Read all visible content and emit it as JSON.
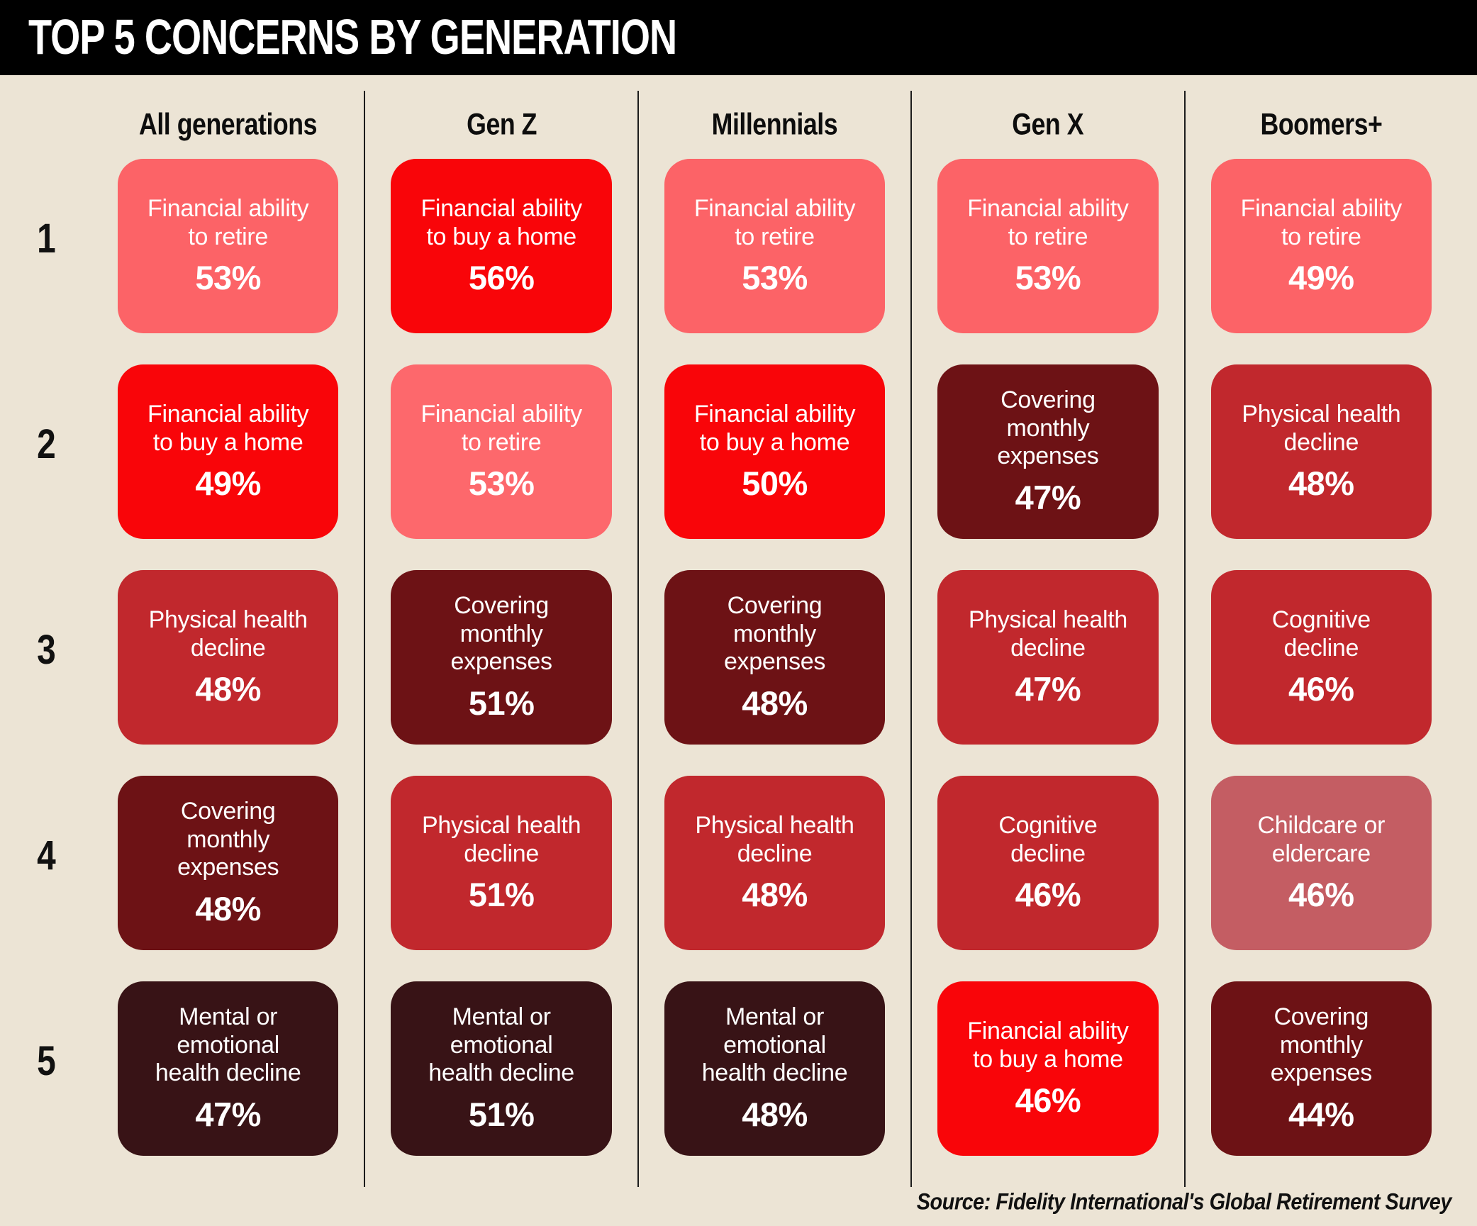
{
  "title": "TOP 5 CONCERNS BY GENERATION",
  "source_note": "Source: Fidelity International's Global Retirement Survey",
  "palette": {
    "page_background": "#ece4d5",
    "title_bar_background": "#000000",
    "title_text": "#ffffff",
    "header_text": "#0d0d0d",
    "rank_text": "#111111",
    "card_text": "#ffffff",
    "divider": "#1c1c1c",
    "concern_colors": {
      "financial_ability_to_retire": "#fc6367",
      "financial_ability_to_buy_a_home": "#f90509",
      "covering_monthly_expenses": "#6d1215",
      "physical_health_decline": "#c1282d",
      "cognitive_decline": "#c1282d",
      "mental_or_emotional_health_decline": "#381316",
      "childcare_or_eldercare": "#c45d63"
    }
  },
  "chart_data": {
    "type": "table",
    "title": "TOP 5 CONCERNS BY GENERATION",
    "row_labels": [
      "1",
      "2",
      "3",
      "4",
      "5"
    ],
    "columns": [
      {
        "label": "All generations",
        "cells": [
          {
            "concern": "Financial ability\nto retire",
            "value_pct": 53,
            "color": "#fc6367"
          },
          {
            "concern": "Financial ability\nto buy a home",
            "value_pct": 49,
            "color": "#f90509"
          },
          {
            "concern": "Physical health\ndecline",
            "value_pct": 48,
            "color": "#c1282d"
          },
          {
            "concern": "Covering\nmonthly\nexpenses",
            "value_pct": 48,
            "color": "#6d1215"
          },
          {
            "concern": "Mental or\nemotional\nhealth decline",
            "value_pct": 47,
            "color": "#381316"
          }
        ]
      },
      {
        "label": "Gen Z",
        "cells": [
          {
            "concern": "Financial ability\nto buy a home",
            "value_pct": 56,
            "color": "#f90509"
          },
          {
            "concern": "Financial ability\nto retire",
            "value_pct": 53,
            "color": "#fd686c"
          },
          {
            "concern": "Covering\nmonthly\nexpenses",
            "value_pct": 51,
            "color": "#6d1215"
          },
          {
            "concern": "Physical health\ndecline",
            "value_pct": 51,
            "color": "#c1282d"
          },
          {
            "concern": "Mental or\nemotional\nhealth decline",
            "value_pct": 51,
            "color": "#381316"
          }
        ]
      },
      {
        "label": "Millennials",
        "cells": [
          {
            "concern": "Financial ability\nto retire",
            "value_pct": 53,
            "color": "#fc6367"
          },
          {
            "concern": "Financial ability\nto buy a home",
            "value_pct": 50,
            "color": "#f90509"
          },
          {
            "concern": "Covering\nmonthly\nexpenses",
            "value_pct": 48,
            "color": "#6d1215"
          },
          {
            "concern": "Physical health\ndecline",
            "value_pct": 48,
            "color": "#c1282d"
          },
          {
            "concern": "Mental or\nemotional\nhealth decline",
            "value_pct": 48,
            "color": "#381316"
          }
        ]
      },
      {
        "label": "Gen X",
        "cells": [
          {
            "concern": "Financial ability\nto retire",
            "value_pct": 53,
            "color": "#fc6367"
          },
          {
            "concern": "Covering\nmonthly\nexpenses",
            "value_pct": 47,
            "color": "#6d1215"
          },
          {
            "concern": "Physical health\ndecline",
            "value_pct": 47,
            "color": "#c1282d"
          },
          {
            "concern": "Cognitive\ndecline",
            "value_pct": 46,
            "color": "#c1282d"
          },
          {
            "concern": "Financial ability\nto buy a home",
            "value_pct": 46,
            "color": "#f90509"
          }
        ]
      },
      {
        "label": "Boomers+",
        "cells": [
          {
            "concern": "Financial ability\nto retire",
            "value_pct": 49,
            "color": "#fc6367"
          },
          {
            "concern": "Physical health\ndecline",
            "value_pct": 48,
            "color": "#c1282d"
          },
          {
            "concern": "Cognitive\ndecline",
            "value_pct": 46,
            "color": "#c1282d"
          },
          {
            "concern": "Childcare or\neldercare",
            "value_pct": 46,
            "color": "#c45d63"
          },
          {
            "concern": "Covering\nmonthly\nexpenses",
            "value_pct": 44,
            "color": "#6d1215"
          }
        ]
      }
    ]
  }
}
